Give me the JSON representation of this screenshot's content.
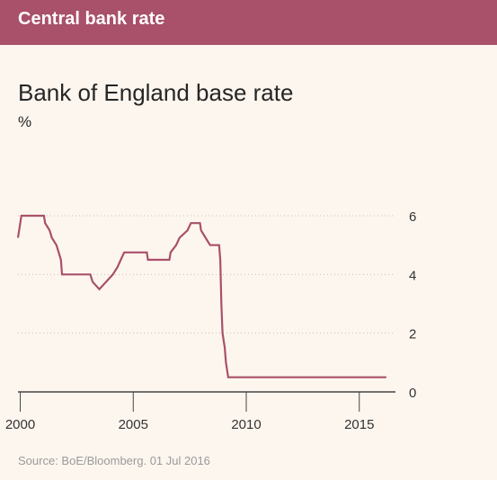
{
  "banner": {
    "title": "Central bank rate"
  },
  "chart_title": "Bank of England base rate",
  "unit_label": "%",
  "source_note": "Source: BoE/Bloomberg. 01 Jul 2016",
  "colors": {
    "banner": "#a9506a",
    "line": "#a9506a",
    "background": "#fdf6ef",
    "grid": "#c8c0b8"
  },
  "chart_data": {
    "type": "line",
    "title": "Bank of England base rate",
    "ylabel": "%",
    "xlim": [
      1999.9,
      2016.6
    ],
    "ylim": [
      0,
      6
    ],
    "x_ticks": [
      2000,
      2005,
      2010,
      2015
    ],
    "y_ticks": [
      0,
      2,
      4,
      6
    ],
    "grid": "horizontal dotted",
    "series": [
      {
        "values": [
          [
            1999.9,
            5.25
          ],
          [
            1999.95,
            5.5
          ],
          [
            2000.05,
            6.0
          ],
          [
            2001.05,
            6.0
          ],
          [
            2001.1,
            5.75
          ],
          [
            2001.3,
            5.5
          ],
          [
            2001.4,
            5.25
          ],
          [
            2001.6,
            5.0
          ],
          [
            2001.7,
            4.75
          ],
          [
            2001.8,
            4.5
          ],
          [
            2001.85,
            4.0
          ],
          [
            2003.1,
            4.0
          ],
          [
            2003.2,
            3.75
          ],
          [
            2003.5,
            3.5
          ],
          [
            2003.8,
            3.75
          ],
          [
            2004.1,
            4.0
          ],
          [
            2004.3,
            4.25
          ],
          [
            2004.45,
            4.5
          ],
          [
            2004.6,
            4.75
          ],
          [
            2005.6,
            4.75
          ],
          [
            2005.65,
            4.5
          ],
          [
            2006.6,
            4.5
          ],
          [
            2006.65,
            4.75
          ],
          [
            2006.9,
            5.0
          ],
          [
            2007.05,
            5.25
          ],
          [
            2007.4,
            5.5
          ],
          [
            2007.55,
            5.75
          ],
          [
            2007.95,
            5.75
          ],
          [
            2008.0,
            5.5
          ],
          [
            2008.2,
            5.25
          ],
          [
            2008.4,
            5.0
          ],
          [
            2008.8,
            5.0
          ],
          [
            2008.85,
            4.5
          ],
          [
            2008.9,
            3.0
          ],
          [
            2008.95,
            2.0
          ],
          [
            2009.05,
            1.5
          ],
          [
            2009.1,
            1.0
          ],
          [
            2009.2,
            0.5
          ],
          [
            2016.2,
            0.5
          ]
        ]
      }
    ]
  }
}
